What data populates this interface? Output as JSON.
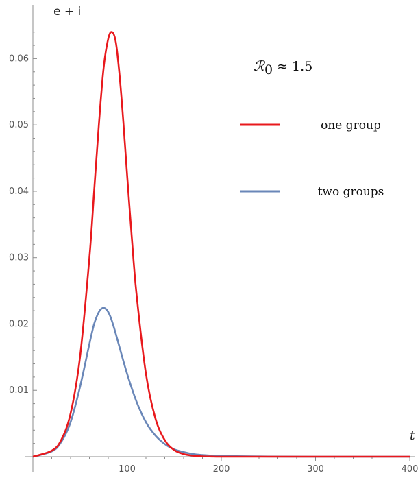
{
  "chart_data": {
    "type": "line",
    "title": "",
    "xlabel": "t",
    "ylabel": "e + i",
    "xlim": [
      0,
      400
    ],
    "ylim": [
      0,
      0.068
    ],
    "x_ticks": [
      100,
      200,
      300,
      400
    ],
    "y_ticks": [
      0.01,
      0.02,
      0.03,
      0.04,
      0.05,
      0.06
    ],
    "x_tick_labels": [
      "100",
      "200",
      "300",
      "400"
    ],
    "y_tick_labels": [
      "0.01",
      "0.02",
      "0.03",
      "0.04",
      "0.05",
      "0.06"
    ],
    "grid": false,
    "legend_position": "right",
    "annotation": {
      "symbol": "ℛ",
      "subscript": "0",
      "text": " ≈ 1.5"
    },
    "series": [
      {
        "name": "one group",
        "color": "#e8191d",
        "x": [
          0,
          20,
          30,
          40,
          50,
          60,
          65,
          70,
          75,
          80,
          84,
          88,
          92,
          96,
          100,
          105,
          110,
          120,
          130,
          140,
          150,
          160,
          170,
          180,
          190,
          200,
          250,
          300,
          350,
          400
        ],
        "y": [
          0.0,
          0.0009,
          0.0025,
          0.0065,
          0.015,
          0.03,
          0.04,
          0.05,
          0.0585,
          0.063,
          0.064,
          0.0625,
          0.0575,
          0.0505,
          0.0425,
          0.033,
          0.0245,
          0.0125,
          0.0058,
          0.0025,
          0.001,
          0.0004,
          0.00015,
          5e-05,
          2e-05,
          0.0,
          0.0,
          0.0,
          0.0,
          0.0
        ]
      },
      {
        "name": "two groups",
        "color": "#6a87b8",
        "x": [
          0,
          20,
          30,
          40,
          50,
          60,
          65,
          70,
          74,
          78,
          82,
          86,
          90,
          100,
          110,
          120,
          130,
          140,
          150,
          160,
          170,
          180,
          190,
          200,
          250,
          300,
          350,
          400
        ],
        "y": [
          0.0,
          0.0008,
          0.0022,
          0.0052,
          0.0105,
          0.017,
          0.02,
          0.0218,
          0.0224,
          0.0222,
          0.0212,
          0.0195,
          0.0175,
          0.0125,
          0.0083,
          0.0052,
          0.0032,
          0.0019,
          0.0011,
          0.0007,
          0.0004,
          0.00025,
          0.00015,
          0.0001,
          2e-05,
          0.0,
          0.0,
          0.0
        ]
      }
    ]
  }
}
